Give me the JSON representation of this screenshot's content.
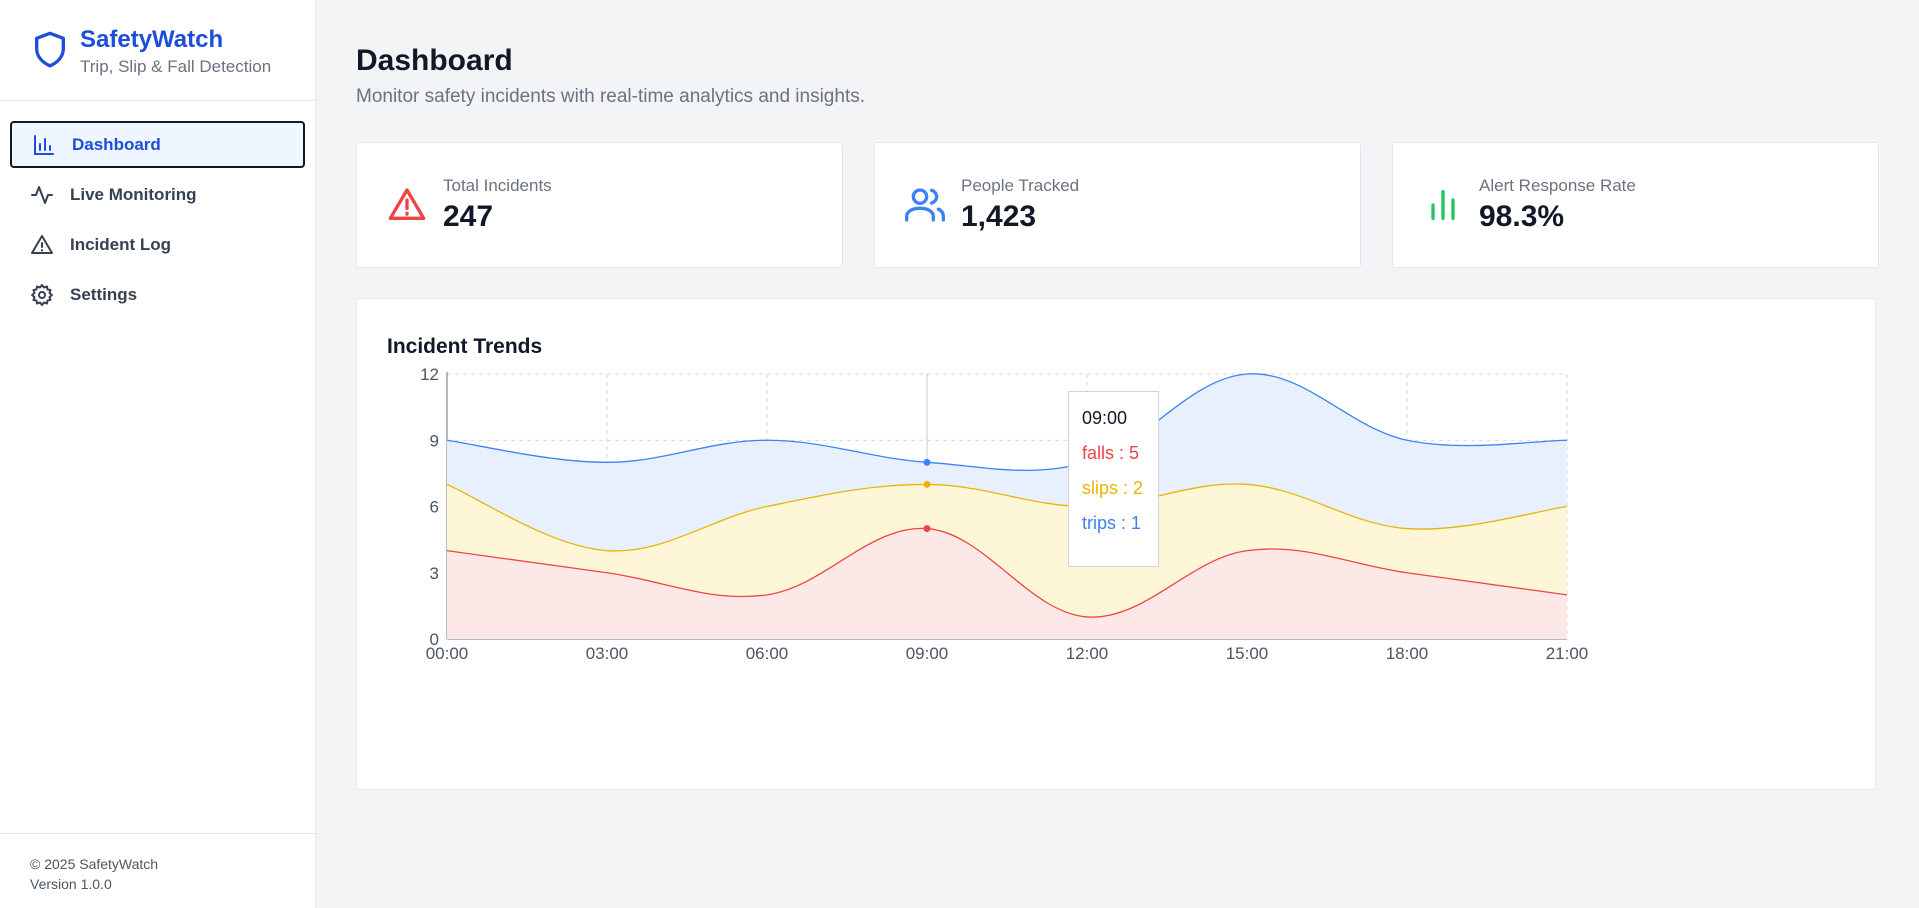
{
  "brand": {
    "title": "SafetyWatch",
    "subtitle": "Trip, Slip & Fall Detection"
  },
  "nav": [
    {
      "label": "Dashboard",
      "icon": "bar-chart-icon",
      "active": true
    },
    {
      "label": "Live Monitoring",
      "icon": "activity-icon",
      "active": false
    },
    {
      "label": "Incident Log",
      "icon": "warning-icon",
      "active": false
    },
    {
      "label": "Settings",
      "icon": "gear-icon",
      "active": false
    }
  ],
  "footer": {
    "copyright": "© 2025 SafetyWatch",
    "version": "Version 1.0.0"
  },
  "page": {
    "title": "Dashboard",
    "subtitle": "Monitor safety incidents with real-time analytics and insights."
  },
  "stats": [
    {
      "label": "Total Incidents",
      "value": "247",
      "icon": "alert-triangle-icon",
      "color": "#ef4444"
    },
    {
      "label": "People Tracked",
      "value": "1,423",
      "icon": "users-icon",
      "color": "#3b82f6"
    },
    {
      "label": "Alert Response Rate",
      "value": "98.3%",
      "icon": "bar-chart-icon",
      "color": "#22c55e"
    }
  ],
  "colors": {
    "accent": "#1d4ed8",
    "falls": "#ef4444",
    "slips": "#eab308",
    "trips": "#3b82f6"
  },
  "chart_data": {
    "type": "area",
    "stacked": true,
    "title": "Incident Trends",
    "x": [
      "00:00",
      "03:00",
      "06:00",
      "09:00",
      "12:00",
      "15:00",
      "18:00",
      "21:00"
    ],
    "ylim": [
      0,
      12
    ],
    "yticks": [
      0,
      3,
      6,
      9,
      12
    ],
    "grid": true,
    "series": [
      {
        "name": "falls",
        "values": [
          4,
          3,
          2,
          5,
          1,
          4,
          3,
          2
        ],
        "color": "#ef4444",
        "fill": "#fde8e8"
      },
      {
        "name": "slips",
        "values": [
          3,
          1,
          4,
          2,
          5,
          3,
          2,
          4
        ],
        "color": "#eab308",
        "fill": "#fdf7d8"
      },
      {
        "name": "trips",
        "values": [
          2,
          4,
          3,
          1,
          2,
          5,
          4,
          3
        ],
        "color": "#3b82f6",
        "fill": "#e8f0fd"
      }
    ],
    "tooltip": {
      "title": "09:00",
      "lines": [
        "falls : 5",
        "slips : 2",
        "trips : 1"
      ],
      "index": 3
    }
  }
}
